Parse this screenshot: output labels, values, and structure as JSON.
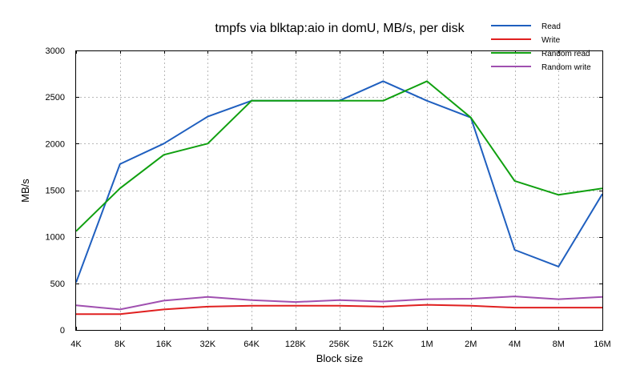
{
  "chart_data": {
    "type": "line",
    "title": "tmpfs via blktap:aio in domU, MB/s, per disk",
    "xlabel": "Block size",
    "ylabel": "MB/s",
    "categories": [
      "4K",
      "8K",
      "16K",
      "32K",
      "64K",
      "128K",
      "256K",
      "512K",
      "1M",
      "2M",
      "4M",
      "8M",
      "16M"
    ],
    "ylim": [
      0,
      3000
    ],
    "yticks": [
      0,
      500,
      1000,
      1500,
      2000,
      2500,
      3000
    ],
    "grid": true,
    "legend_position": "top-right",
    "series": [
      {
        "name": "Read",
        "color": "#1f5fbf",
        "values": [
          510,
          1780,
          2000,
          2290,
          2460,
          2460,
          2460,
          2670,
          2460,
          2280,
          860,
          680,
          1460
        ]
      },
      {
        "name": "Write",
        "color": "#e02020",
        "values": [
          170,
          170,
          220,
          250,
          260,
          260,
          260,
          250,
          270,
          260,
          240,
          240,
          240
        ]
      },
      {
        "name": "Random read",
        "color": "#10a010",
        "values": [
          1060,
          1520,
          1880,
          2000,
          2460,
          2460,
          2460,
          2460,
          2670,
          2280,
          1600,
          1450,
          1520
        ]
      },
      {
        "name": "Random write",
        "color": "#a050b0",
        "values": [
          265,
          220,
          315,
          355,
          320,
          300,
          320,
          305,
          330,
          335,
          360,
          330,
          355
        ]
      }
    ]
  }
}
